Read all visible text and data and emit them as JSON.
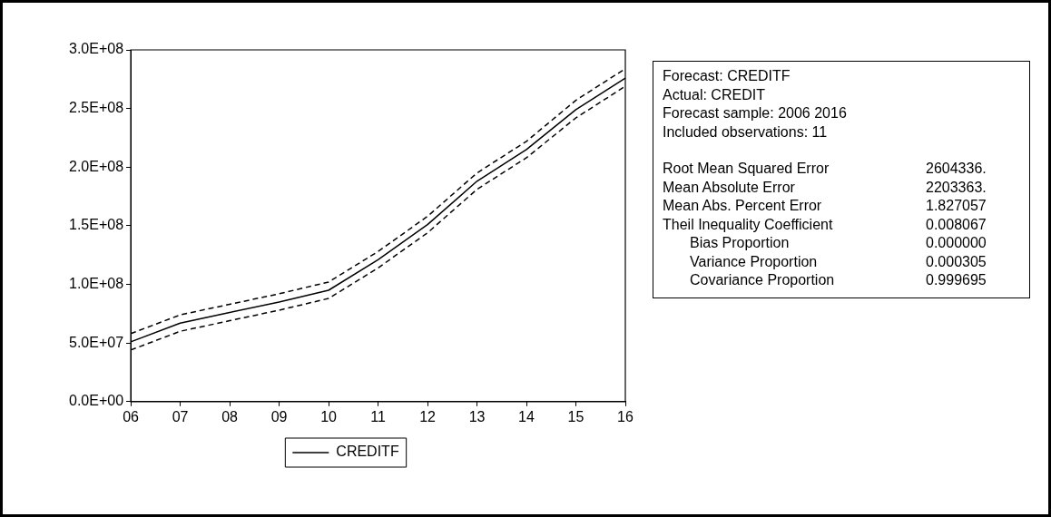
{
  "chart_data": {
    "type": "line",
    "categories": [
      "06",
      "07",
      "08",
      "09",
      "10",
      "11",
      "12",
      "13",
      "14",
      "15",
      "16"
    ],
    "series": [
      {
        "name": "CREDITF",
        "color": "#000000",
        "values": [
          51000000,
          67000000,
          76000000,
          85000000,
          95000000,
          121000000,
          151000000,
          188000000,
          215000000,
          249000000,
          276000000
        ]
      },
      {
        "color": "#000000",
        "line_style": "dashed",
        "values": [
          58000000,
          74000000,
          83000000,
          92000000,
          102000000,
          128000000,
          158000000,
          195000000,
          222000000,
          257000000,
          284000000
        ]
      },
      {
        "color": "#000000",
        "line_style": "dashed",
        "values": [
          44000000,
          60000000,
          69000000,
          78000000,
          88000000,
          114000000,
          144000000,
          181000000,
          208000000,
          242000000,
          269000000
        ]
      }
    ],
    "ylim": [
      0,
      300000000
    ],
    "yticks": [
      {
        "value": 0,
        "label": "0.0E+00"
      },
      {
        "value": 50000000,
        "label": "5.0E+07"
      },
      {
        "value": 100000000,
        "label": "1.0E+08"
      },
      {
        "value": 150000000,
        "label": "1.5E+08"
      },
      {
        "value": 200000000,
        "label": "2.0E+08"
      },
      {
        "value": 250000000,
        "label": "2.5E+08"
      },
      {
        "value": 300000000,
        "label": "3.0E+08"
      }
    ],
    "grid": false,
    "legend": "bottom",
    "marker": "none",
    "line_style": "solid",
    "annotations": [
      "Forecast: CREDITF",
      "Actual: CREDIT",
      "Forecast sample: 2006 2016",
      "Included observations: 11",
      "Root Mean Squared Error",
      "2604336.",
      "Mean Absolute Error",
      "2203363.",
      "Mean Abs. Percent Error",
      "1.827057",
      "Theil Inequality Coefficient",
      "0.008067",
      "Bias Proportion",
      "0.000000",
      "Variance Proportion",
      "0.000305",
      "Covariance Proportion",
      "0.999695"
    ]
  }
}
